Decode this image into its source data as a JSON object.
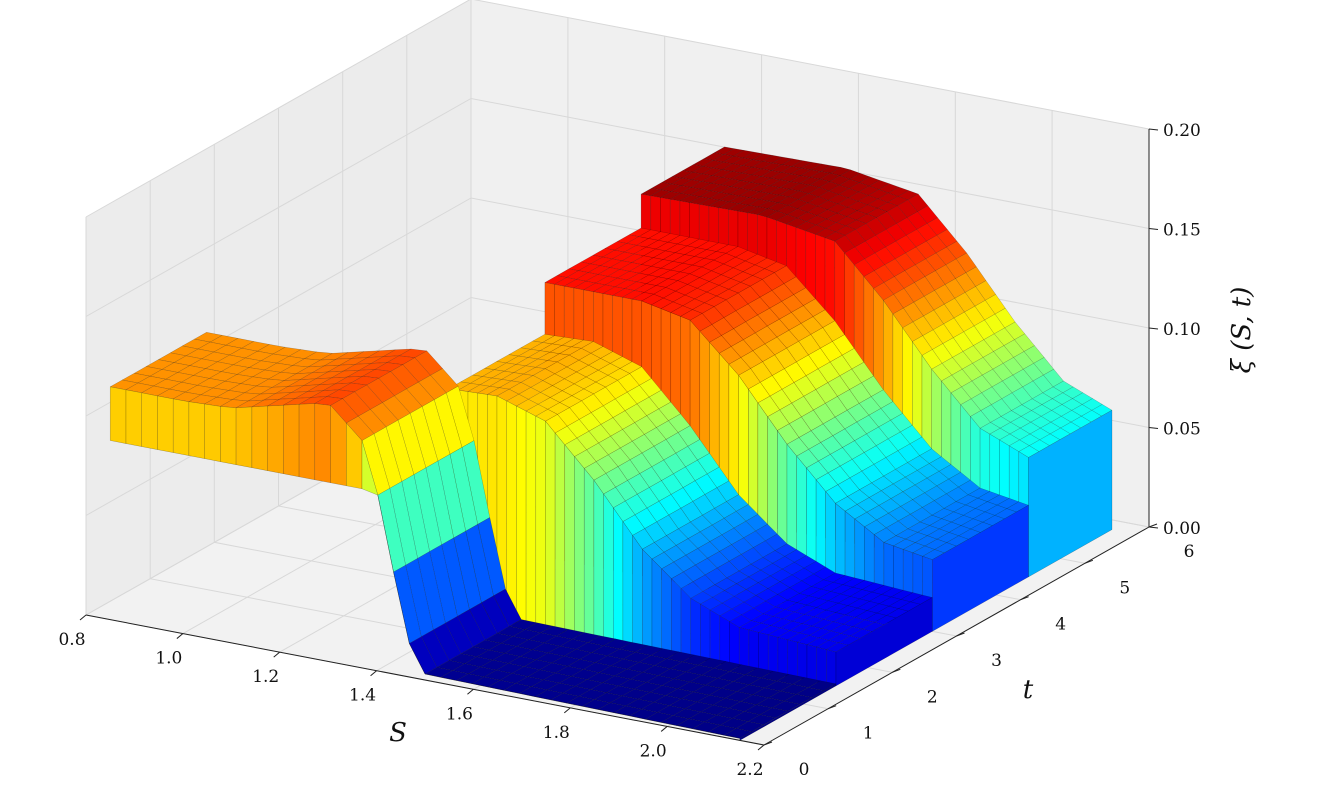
{
  "chart_data": {
    "type": "surface3d",
    "title": "",
    "xlabel": "S",
    "ylabel": "t",
    "zlabel": "ξ (S, t)",
    "xlim": [
      0.8,
      2.2
    ],
    "ylim": [
      0,
      6
    ],
    "zlim": [
      0.0,
      0.2
    ],
    "xticks": [
      "0.8",
      "1.0",
      "1.2",
      "1.4",
      "1.6",
      "1.8",
      "2.0",
      "2.2"
    ],
    "yticks": [
      "0",
      "1",
      "2",
      "3",
      "4",
      "5",
      "6"
    ],
    "zticks": [
      "0.00",
      "0.05",
      "0.10",
      "0.15",
      "0.20"
    ],
    "colormap": "jet",
    "colormap_stops": [
      "#00007f",
      "#0000ff",
      "#007fff",
      "#00ffff",
      "#7fff7f",
      "#ffff00",
      "#ff7f00",
      "#ff0000",
      "#7f0000"
    ],
    "grid": true,
    "surface": {
      "description": "piecewise surface over S and t with steps in t",
      "segments": [
        {
          "t_range": [
            0.0,
            1.5
          ],
          "S_range": [
            0.85,
            2.15
          ],
          "profile": [
            [
              0.85,
              0.117
            ],
            [
              1.0,
              0.117
            ],
            [
              1.1,
              0.118
            ],
            [
              1.2,
              0.124
            ],
            [
              1.3,
              0.13
            ],
            [
              1.38,
              0.112
            ],
            [
              1.42,
              0.07
            ],
            [
              1.46,
              0.02
            ],
            [
              1.5,
              0.003
            ],
            [
              1.8,
              0.002
            ],
            [
              2.15,
              0.001
            ]
          ],
          "base": 0.09
        },
        {
          "t_range": [
            1.5,
            3.0
          ],
          "S_range": [
            1.35,
            2.15
          ],
          "profile": [
            [
              1.35,
              0.112
            ],
            [
              1.45,
              0.113
            ],
            [
              1.55,
              0.105
            ],
            [
              1.65,
              0.08
            ],
            [
              1.75,
              0.05
            ],
            [
              1.85,
              0.03
            ],
            [
              1.95,
              0.02
            ],
            [
              2.15,
              0.017
            ]
          ],
          "base": 0.0
        },
        {
          "t_range": [
            3.0,
            4.5
          ],
          "S_range": [
            1.35,
            2.15
          ],
          "profile": [
            [
              1.35,
              0.138
            ],
            [
              1.55,
              0.138
            ],
            [
              1.65,
              0.133
            ],
            [
              1.75,
              0.11
            ],
            [
              1.85,
              0.08
            ],
            [
              1.95,
              0.055
            ],
            [
              2.05,
              0.04
            ],
            [
              2.15,
              0.036
            ]
          ],
          "base": 0.0
        },
        {
          "t_range": [
            4.5,
            5.8
          ],
          "S_range": [
            1.35,
            2.15
          ],
          "profile": [
            [
              1.35,
              0.155
            ],
            [
              1.6,
              0.156
            ],
            [
              1.75,
              0.15
            ],
            [
              1.85,
              0.125
            ],
            [
              1.95,
              0.095
            ],
            [
              2.05,
              0.07
            ],
            [
              2.15,
              0.06
            ]
          ],
          "base": 0.0
        }
      ]
    }
  }
}
